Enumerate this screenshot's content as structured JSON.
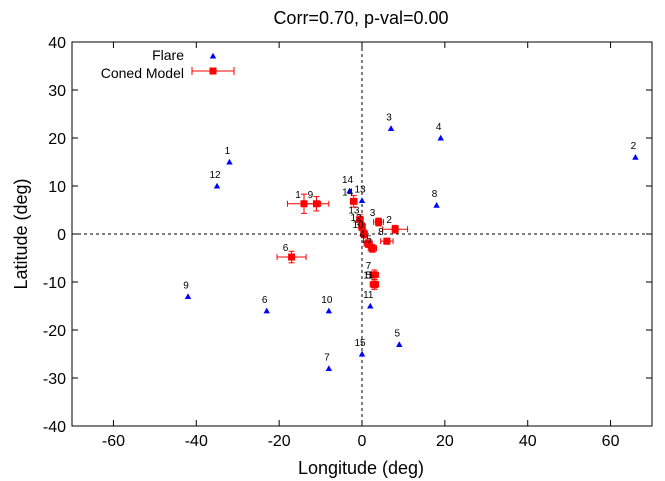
{
  "chart_data": {
    "type": "scatter",
    "title": "Corr=0.70, p-val=0.00",
    "xlabel": "Longitude (deg)",
    "ylabel": "Latitude (deg)",
    "xlim": [
      -70,
      70
    ],
    "ylim": [
      -40,
      40
    ],
    "xticks": [
      -60,
      -40,
      -20,
      0,
      20,
      40,
      60
    ],
    "yticks": [
      -40,
      -30,
      -20,
      -10,
      0,
      10,
      20,
      30,
      40
    ],
    "legend_position": "top-left",
    "grid": false,
    "series": [
      {
        "name": "Flare",
        "marker": "triangle",
        "color": "#0000ff",
        "points": [
          {
            "label": "1",
            "x": -32,
            "y": 15
          },
          {
            "label": "2",
            "x": 66,
            "y": 16
          },
          {
            "label": "3",
            "x": 7,
            "y": 22
          },
          {
            "label": "4",
            "x": 19,
            "y": 20
          },
          {
            "label": "5",
            "x": 9,
            "y": -23
          },
          {
            "label": "6",
            "x": -23,
            "y": -16
          },
          {
            "label": "7",
            "x": -8,
            "y": -28
          },
          {
            "label": "8",
            "x": 18,
            "y": 6
          },
          {
            "label": "9",
            "x": -42,
            "y": -13
          },
          {
            "label": "10",
            "x": -8,
            "y": -16
          },
          {
            "label": "11",
            "x": 2,
            "y": -15
          },
          {
            "label": "12",
            "x": -35,
            "y": 10
          },
          {
            "label": "13",
            "x": 0,
            "y": 7
          },
          {
            "label": "14",
            "x": -3,
            "y": 9
          },
          {
            "label": "15",
            "x": 0,
            "y": -25
          }
        ]
      },
      {
        "name": "Coned Model",
        "marker": "square",
        "color": "#ff0000",
        "points": [
          {
            "label": "1",
            "x": -14,
            "y": 6.3,
            "xerr": 4,
            "yerr": 2
          },
          {
            "label": "9",
            "x": -11,
            "y": 6.3,
            "xerr": 3,
            "yerr": 1.5
          },
          {
            "label": "14",
            "x": -2,
            "y": 6.8,
            "xerr": 0.8,
            "yerr": 1.2
          },
          {
            "label": "13",
            "x": -0.5,
            "y": 3,
            "xerr": 0.8,
            "yerr": 1
          },
          {
            "label": "3",
            "x": 4,
            "y": 2.5,
            "xerr": 1.2,
            "yerr": 0.8
          },
          {
            "label": "2",
            "x": 8,
            "y": 1,
            "xerr": 3,
            "yerr": 0.8
          },
          {
            "label": "12",
            "x": 0,
            "y": 1.5,
            "xerr": 0.8,
            "yerr": 0.8
          },
          {
            "label": "10",
            "x": 0.5,
            "y": 0,
            "xerr": 0.8,
            "yerr": 0.8
          },
          {
            "label": "4",
            "x": 1.5,
            "y": -2,
            "xerr": 1,
            "yerr": 0.8
          },
          {
            "label": "8",
            "x": 6,
            "y": -1.5,
            "xerr": 1.5,
            "yerr": 0.6
          },
          {
            "label": "15",
            "x": 2.5,
            "y": -3,
            "xerr": 1,
            "yerr": 0.8
          },
          {
            "label": "6",
            "x": -17,
            "y": -4.8,
            "xerr": 3.5,
            "yerr": 1.2
          },
          {
            "label": "7",
            "x": 3,
            "y": -8.5,
            "xerr": 1,
            "yerr": 1
          },
          {
            "label": "5",
            "x": 3,
            "y": -10.5,
            "xerr": 1,
            "yerr": 1
          },
          {
            "label": "11",
            "x": 3,
            "y": -10.5,
            "xerr": 1,
            "yerr": 1
          }
        ]
      }
    ]
  }
}
